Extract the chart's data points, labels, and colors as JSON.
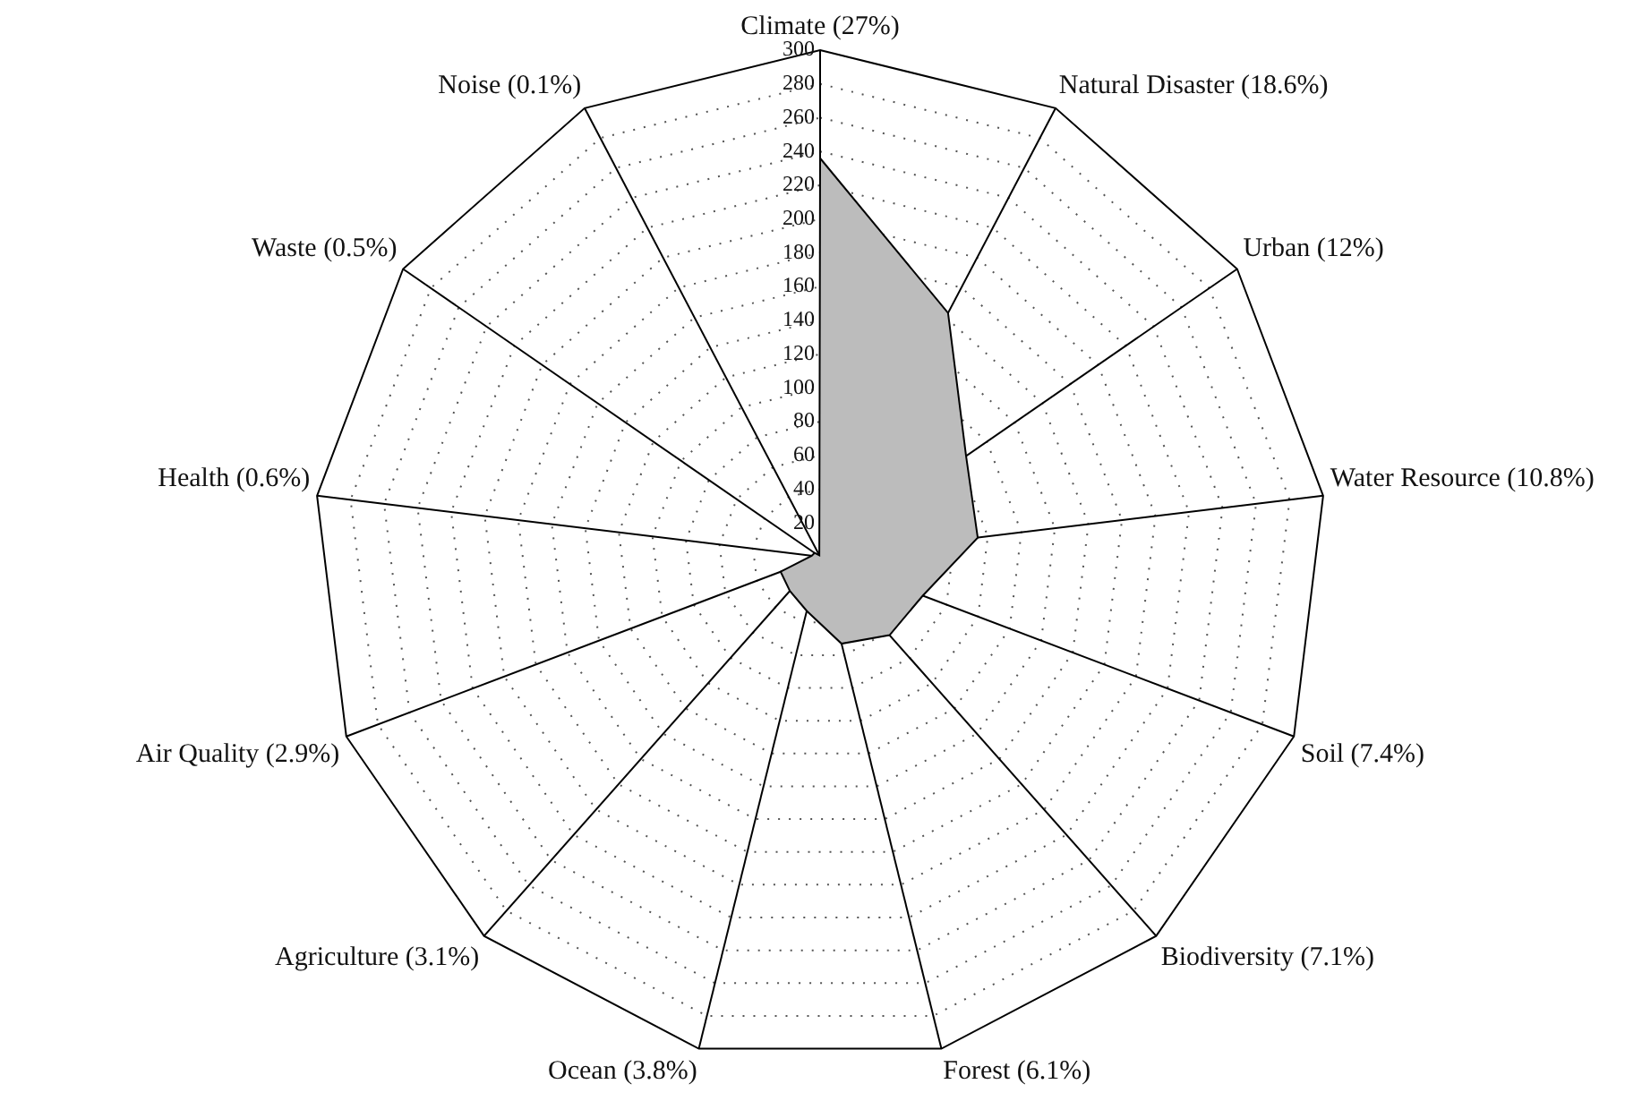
{
  "chart_data": {
    "type": "radar",
    "categories": [
      "Climate (27%)",
      "Natural Disaster (18.6%)",
      "Urban (12%)",
      "Water Resource (10.8%)",
      "Soil (7.4%)",
      "Biodiversity (7.1%)",
      "Forest (6.1%)",
      "Ocean (3.8%)",
      "Agriculture (3.1%)",
      "Air Quality (2.9%)",
      "Health (0.6%)",
      "Waste (0.5%)",
      "Noise (0.1%)"
    ],
    "series": [
      {
        "color": "#bcbcbc",
        "values": [
          236,
          163,
          105,
          94,
          65,
          62,
          53,
          33,
          27,
          25,
          5,
          4,
          1
        ]
      }
    ],
    "ylim": [
      0,
      300
    ],
    "yticks": [
      20,
      40,
      60,
      80,
      100,
      120,
      140,
      160,
      180,
      200,
      220,
      240,
      260,
      280,
      300
    ],
    "grid": true,
    "marker": "none",
    "legend": false
  }
}
